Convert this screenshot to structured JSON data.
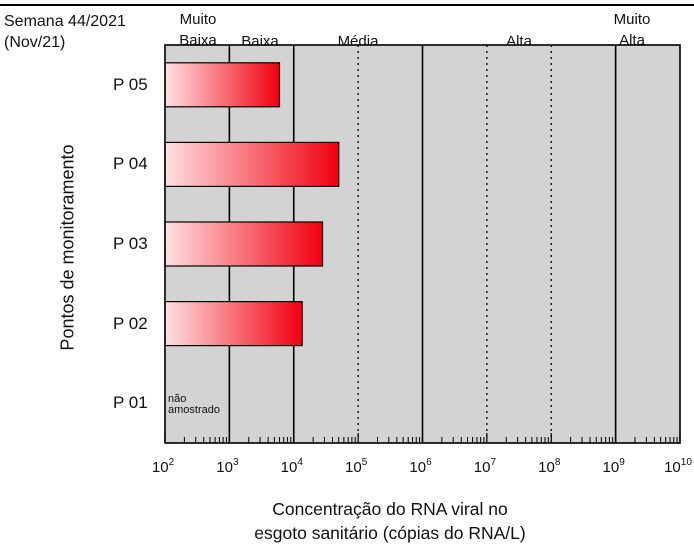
{
  "header": {
    "week": "Semana 44/2021",
    "month": "(Nov/21)"
  },
  "chart_data": {
    "type": "bar",
    "orientation": "horizontal",
    "xscale": "log",
    "xlim": [
      100,
      10000000000
    ],
    "xticks": [
      {
        "value": 100,
        "mantissa": "10",
        "exponent": "2"
      },
      {
        "value": 1000,
        "mantissa": "10",
        "exponent": "3"
      },
      {
        "value": 10000,
        "mantissa": "10",
        "exponent": "4"
      },
      {
        "value": 100000,
        "mantissa": "10",
        "exponent": "5"
      },
      {
        "value": 1000000,
        "mantissa": "10",
        "exponent": "6"
      },
      {
        "value": 10000000,
        "mantissa": "10",
        "exponent": "7"
      },
      {
        "value": 100000000,
        "mantissa": "10",
        "exponent": "8"
      },
      {
        "value": 1000000000,
        "mantissa": "10",
        "exponent": "9"
      },
      {
        "value": 10000000000,
        "mantissa": "10",
        "exponent": "10"
      }
    ],
    "xlabel_lines": [
      "Concentração do RNA viral no",
      "esgoto sanitário (cópias do RNA/L)"
    ],
    "ylabel": "Pontos de monitoramento",
    "categories": [
      "P 05",
      "P 04",
      "P 03",
      "P 02",
      "P 01"
    ],
    "values": [
      6000,
      50000,
      28000,
      13500,
      null
    ],
    "annotations": [
      {
        "category": "P 01",
        "lines": [
          "não",
          "amostrado"
        ]
      }
    ],
    "bands": [
      {
        "label_lines": [
          "Muito",
          "Baixa"
        ],
        "from": 100,
        "to": 1000
      },
      {
        "label_lines": [
          "Baixa"
        ],
        "from": 1000,
        "to": 10000
      },
      {
        "label_lines": [
          "Média"
        ],
        "from": 10000,
        "to": 1000000
      },
      {
        "label_lines": [
          "Alta"
        ],
        "from": 1000000,
        "to": 1000000000
      },
      {
        "label_lines": [
          "Muito",
          "Alta"
        ],
        "from": 1000000000,
        "to": 10000000000
      }
    ],
    "dotted_lines_at": [
      100000,
      10000000,
      100000000
    ],
    "grid": false,
    "colors": {
      "plot_background": "#d3d3d3",
      "bar_gradient_start": "#ffe0e2",
      "bar_gradient_end": "#f00010",
      "separator": "#000000"
    }
  }
}
